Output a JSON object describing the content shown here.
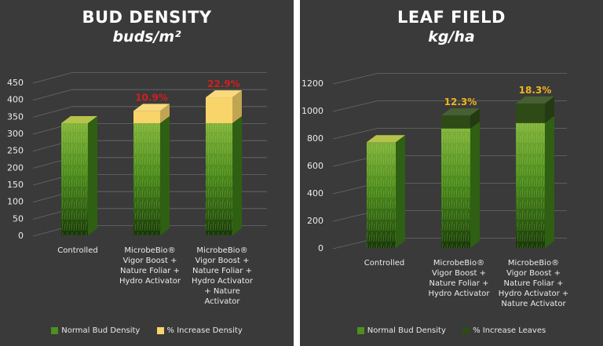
{
  "chart_data": [
    {
      "type": "bar",
      "stacked": true,
      "title": "BUD DENSITY",
      "subtitle": "buds/m²",
      "categories": [
        [
          "Controlled"
        ],
        [
          "MicrobeBio®",
          "Vigor Boost +",
          "Nature Foliar +",
          "Hydro Activator"
        ],
        [
          "MicrobeBio®",
          "Vigor Boost +",
          "Nature Foliar +",
          "Hydro Activator",
          "+ Nature",
          "Activator"
        ]
      ],
      "series": [
        {
          "name": "Normal Bud Density",
          "values": [
            330,
            330,
            330
          ]
        },
        {
          "name": "% Increase Density",
          "values": [
            0,
            36,
            76
          ]
        }
      ],
      "annotations": [
        "",
        "10.9%",
        "22.9%"
      ],
      "yticks": [
        "0",
        "50",
        "100",
        "150",
        "200",
        "250",
        "300",
        "350",
        "400",
        "450"
      ],
      "ylim": [
        0,
        450
      ],
      "legend_position": "bottom",
      "colors": {
        "base": "#4f8e1f",
        "increase": "#f8d46a",
        "annotation": "#d21f1f"
      }
    },
    {
      "type": "bar",
      "stacked": true,
      "title": "LEAF FIELD",
      "subtitle": "kg/ha",
      "categories": [
        [
          "Controlled"
        ],
        [
          "MicrobeBio®",
          "Vigor Boost +",
          "Nature Foliar +",
          "Hydro Activator"
        ],
        [
          "MicrobeBio®",
          "Vigor Boost +",
          "Nature Foliar +",
          "Hydro Activator +",
          "Nature Activator"
        ]
      ],
      "series": [
        {
          "name": "Normal Bud Density",
          "values": [
            770,
            870,
            910
          ]
        },
        {
          "name": "% Increase Leaves",
          "values": [
            0,
            95,
            142
          ]
        }
      ],
      "annotations": [
        "",
        "12.3%",
        "18.3%"
      ],
      "yticks": [
        "0",
        "200",
        "400",
        "600",
        "800",
        "1000",
        "1200"
      ],
      "ylim": [
        0,
        1200
      ],
      "legend_position": "bottom",
      "colors": {
        "base": "#4f8e1f",
        "increase": "#2e4a17",
        "annotation": "#f0b41c"
      }
    }
  ]
}
